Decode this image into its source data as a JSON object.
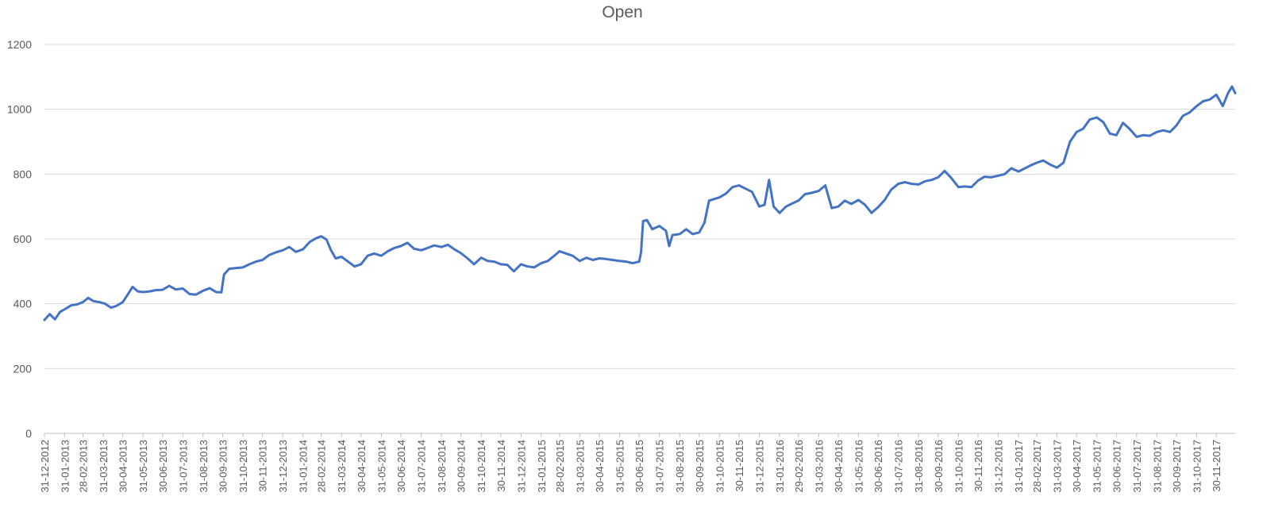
{
  "chart_data": {
    "type": "line",
    "title": "Open",
    "xlabel": "",
    "ylabel": "",
    "ylim": [
      0,
      1200
    ],
    "yticks": [
      0,
      200,
      400,
      600,
      800,
      1000,
      1200
    ],
    "grid": true,
    "legend": "none",
    "x_tick_labels": [
      "31-12-2012",
      "31-01-2013",
      "28-02-2013",
      "31-03-2013",
      "30-04-2013",
      "31-05-2013",
      "30-06-2013",
      "31-07-2013",
      "31-08-2013",
      "30-09-2013",
      "31-10-2013",
      "30-11-2013",
      "31-12-2013",
      "31-01-2014",
      "28-02-2014",
      "31-03-2014",
      "30-04-2014",
      "31-05-2014",
      "30-06-2014",
      "31-07-2014",
      "31-08-2014",
      "30-09-2014",
      "31-10-2014",
      "30-11-2014",
      "31-12-2014",
      "31-01-2015",
      "28-02-2015",
      "31-03-2015",
      "30-04-2015",
      "31-05-2015",
      "30-06-2015",
      "31-07-2015",
      "31-08-2015",
      "30-09-2015",
      "31-10-2015",
      "30-11-2015",
      "31-12-2015",
      "31-01-2016",
      "29-02-2016",
      "31-03-2016",
      "30-04-2016",
      "31-05-2016",
      "30-06-2016",
      "31-07-2016",
      "31-08-2016",
      "30-09-2016",
      "31-10-2016",
      "30-11-2016",
      "31-12-2016",
      "31-01-2017",
      "28-02-2017",
      "31-03-2017",
      "30-04-2017",
      "31-05-2017",
      "30-06-2017",
      "31-07-2017",
      "31-08-2017",
      "30-09-2017",
      "31-10-2017",
      "30-11-2017"
    ],
    "series": [
      {
        "color": "#4472C4",
        "points": [
          [
            "2012-12-31",
            350
          ],
          [
            "2013-01-08",
            368
          ],
          [
            "2013-01-16",
            352
          ],
          [
            "2013-01-24",
            375
          ],
          [
            "2013-02-01",
            384
          ],
          [
            "2013-02-10",
            395
          ],
          [
            "2013-02-19",
            398
          ],
          [
            "2013-02-28",
            405
          ],
          [
            "2013-03-08",
            418
          ],
          [
            "2013-03-16",
            408
          ],
          [
            "2013-03-25",
            405
          ],
          [
            "2013-04-03",
            400
          ],
          [
            "2013-04-12",
            388
          ],
          [
            "2013-04-20",
            393
          ],
          [
            "2013-04-30",
            405
          ],
          [
            "2013-05-08",
            430
          ],
          [
            "2013-05-15",
            452
          ],
          [
            "2013-05-23",
            438
          ],
          [
            "2013-05-31",
            436
          ],
          [
            "2013-06-10",
            438
          ],
          [
            "2013-06-20",
            442
          ],
          [
            "2013-06-30",
            443
          ],
          [
            "2013-07-10",
            455
          ],
          [
            "2013-07-20",
            444
          ],
          [
            "2013-07-31",
            447
          ],
          [
            "2013-08-10",
            430
          ],
          [
            "2013-08-20",
            428
          ],
          [
            "2013-08-31",
            440
          ],
          [
            "2013-09-10",
            448
          ],
          [
            "2013-09-20",
            436
          ],
          [
            "2013-09-28",
            435
          ],
          [
            "2013-10-02",
            490
          ],
          [
            "2013-10-10",
            508
          ],
          [
            "2013-10-20",
            510
          ],
          [
            "2013-10-31",
            512
          ],
          [
            "2013-11-10",
            522
          ],
          [
            "2013-11-20",
            530
          ],
          [
            "2013-11-30",
            535
          ],
          [
            "2013-12-10",
            550
          ],
          [
            "2013-12-20",
            558
          ],
          [
            "2013-12-31",
            565
          ],
          [
            "2014-01-10",
            575
          ],
          [
            "2014-01-20",
            560
          ],
          [
            "2014-01-31",
            568
          ],
          [
            "2014-02-10",
            590
          ],
          [
            "2014-02-20",
            602
          ],
          [
            "2014-02-28",
            608
          ],
          [
            "2014-03-08",
            598
          ],
          [
            "2014-03-15",
            565
          ],
          [
            "2014-03-22",
            540
          ],
          [
            "2014-03-31",
            545
          ],
          [
            "2014-04-10",
            530
          ],
          [
            "2014-04-20",
            515
          ],
          [
            "2014-04-30",
            522
          ],
          [
            "2014-05-10",
            548
          ],
          [
            "2014-05-20",
            555
          ],
          [
            "2014-05-31",
            548
          ],
          [
            "2014-06-10",
            562
          ],
          [
            "2014-06-20",
            572
          ],
          [
            "2014-06-30",
            578
          ],
          [
            "2014-07-10",
            588
          ],
          [
            "2014-07-20",
            570
          ],
          [
            "2014-07-31",
            565
          ],
          [
            "2014-08-10",
            572
          ],
          [
            "2014-08-20",
            580
          ],
          [
            "2014-08-31",
            575
          ],
          [
            "2014-09-10",
            582
          ],
          [
            "2014-09-20",
            568
          ],
          [
            "2014-09-30",
            556
          ],
          [
            "2014-10-10",
            540
          ],
          [
            "2014-10-20",
            522
          ],
          [
            "2014-10-31",
            542
          ],
          [
            "2014-11-10",
            532
          ],
          [
            "2014-11-20",
            530
          ],
          [
            "2014-11-30",
            522
          ],
          [
            "2014-12-10",
            520
          ],
          [
            "2014-12-20",
            500
          ],
          [
            "2014-12-31",
            522
          ],
          [
            "2015-01-10",
            515
          ],
          [
            "2015-01-20",
            512
          ],
          [
            "2015-01-31",
            525
          ],
          [
            "2015-02-10",
            532
          ],
          [
            "2015-02-20",
            548
          ],
          [
            "2015-02-28",
            562
          ],
          [
            "2015-03-10",
            555
          ],
          [
            "2015-03-20",
            548
          ],
          [
            "2015-03-31",
            532
          ],
          [
            "2015-04-10",
            542
          ],
          [
            "2015-04-20",
            535
          ],
          [
            "2015-04-30",
            540
          ],
          [
            "2015-05-10",
            538
          ],
          [
            "2015-05-20",
            535
          ],
          [
            "2015-05-31",
            532
          ],
          [
            "2015-06-10",
            530
          ],
          [
            "2015-06-20",
            525
          ],
          [
            "2015-06-30",
            530
          ],
          [
            "2015-07-03",
            560
          ],
          [
            "2015-07-06",
            655
          ],
          [
            "2015-07-12",
            658
          ],
          [
            "2015-07-20",
            630
          ],
          [
            "2015-07-31",
            640
          ],
          [
            "2015-08-10",
            625
          ],
          [
            "2015-08-15",
            578
          ],
          [
            "2015-08-20",
            612
          ],
          [
            "2015-08-31",
            615
          ],
          [
            "2015-09-10",
            630
          ],
          [
            "2015-09-20",
            615
          ],
          [
            "2015-09-30",
            620
          ],
          [
            "2015-10-08",
            650
          ],
          [
            "2015-10-15",
            718
          ],
          [
            "2015-10-31",
            728
          ],
          [
            "2015-11-10",
            740
          ],
          [
            "2015-11-20",
            760
          ],
          [
            "2015-11-30",
            765
          ],
          [
            "2015-12-10",
            755
          ],
          [
            "2015-12-20",
            745
          ],
          [
            "2015-12-31",
            700
          ],
          [
            "2016-01-08",
            705
          ],
          [
            "2016-01-15",
            782
          ],
          [
            "2016-01-22",
            700
          ],
          [
            "2016-01-31",
            680
          ],
          [
            "2016-02-10",
            700
          ],
          [
            "2016-02-20",
            710
          ],
          [
            "2016-02-29",
            718
          ],
          [
            "2016-03-10",
            738
          ],
          [
            "2016-03-20",
            742
          ],
          [
            "2016-03-31",
            748
          ],
          [
            "2016-04-10",
            765
          ],
          [
            "2016-04-20",
            695
          ],
          [
            "2016-04-30",
            700
          ],
          [
            "2016-05-10",
            718
          ],
          [
            "2016-05-20",
            708
          ],
          [
            "2016-05-31",
            720
          ],
          [
            "2016-06-10",
            705
          ],
          [
            "2016-06-20",
            680
          ],
          [
            "2016-06-30",
            698
          ],
          [
            "2016-07-10",
            720
          ],
          [
            "2016-07-20",
            752
          ],
          [
            "2016-07-31",
            770
          ],
          [
            "2016-08-10",
            775
          ],
          [
            "2016-08-20",
            770
          ],
          [
            "2016-08-31",
            768
          ],
          [
            "2016-09-10",
            778
          ],
          [
            "2016-09-20",
            782
          ],
          [
            "2016-09-30",
            790
          ],
          [
            "2016-10-10",
            810
          ],
          [
            "2016-10-20",
            788
          ],
          [
            "2016-10-31",
            760
          ],
          [
            "2016-11-10",
            762
          ],
          [
            "2016-11-20",
            760
          ],
          [
            "2016-11-30",
            780
          ],
          [
            "2016-12-10",
            792
          ],
          [
            "2016-12-20",
            790
          ],
          [
            "2016-12-31",
            795
          ],
          [
            "2017-01-10",
            800
          ],
          [
            "2017-01-20",
            818
          ],
          [
            "2017-01-31",
            808
          ],
          [
            "2017-02-10",
            818
          ],
          [
            "2017-02-20",
            828
          ],
          [
            "2017-02-28",
            835
          ],
          [
            "2017-03-10",
            842
          ],
          [
            "2017-03-20",
            830
          ],
          [
            "2017-03-31",
            820
          ],
          [
            "2017-04-10",
            835
          ],
          [
            "2017-04-20",
            900
          ],
          [
            "2017-04-30",
            930
          ],
          [
            "2017-05-10",
            940
          ],
          [
            "2017-05-20",
            968
          ],
          [
            "2017-05-31",
            975
          ],
          [
            "2017-06-10",
            960
          ],
          [
            "2017-06-20",
            925
          ],
          [
            "2017-06-30",
            920
          ],
          [
            "2017-07-10",
            958
          ],
          [
            "2017-07-20",
            940
          ],
          [
            "2017-07-31",
            915
          ],
          [
            "2017-08-10",
            920
          ],
          [
            "2017-08-20",
            918
          ],
          [
            "2017-08-31",
            930
          ],
          [
            "2017-09-10",
            935
          ],
          [
            "2017-09-20",
            930
          ],
          [
            "2017-09-30",
            950
          ],
          [
            "2017-10-10",
            980
          ],
          [
            "2017-10-20",
            990
          ],
          [
            "2017-10-31",
            1010
          ],
          [
            "2017-11-10",
            1025
          ],
          [
            "2017-11-20",
            1030
          ],
          [
            "2017-11-30",
            1045
          ],
          [
            "2017-12-10",
            1010
          ],
          [
            "2017-12-18",
            1050
          ],
          [
            "2017-12-24",
            1070
          ],
          [
            "2017-12-29",
            1050
          ]
        ]
      }
    ]
  }
}
